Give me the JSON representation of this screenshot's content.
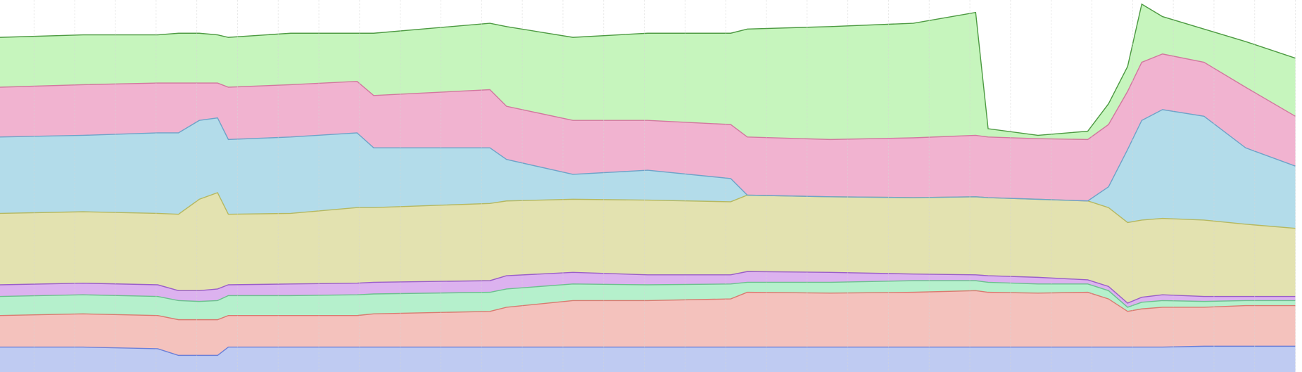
{
  "chart_data": {
    "type": "stacked-area",
    "x": [
      0,
      100,
      190,
      215,
      240,
      262,
      275,
      350,
      430,
      450,
      590,
      610,
      690,
      780,
      880,
      900,
      1000,
      1100,
      1175,
      1190,
      1250,
      1310,
      1335,
      1358,
      1375,
      1400,
      1450,
      1500,
      1560
    ],
    "xlim": [
      0,
      1568
    ],
    "ylim": [
      0,
      448
    ],
    "xticks": [
      41,
      90,
      139,
      188,
      237,
      286,
      335,
      384,
      433,
      482,
      531,
      580,
      629,
      678,
      727,
      776,
      825,
      874,
      923,
      972,
      1021,
      1070,
      1119,
      1168,
      1217,
      1266,
      1315,
      1364,
      1413,
      1462,
      1511,
      1560
    ],
    "grid": true,
    "series": [
      {
        "color": "#bfcbf2",
        "line_color": "#6a7fd8",
        "values": [
          30,
          30,
          28,
          20,
          20,
          20,
          30,
          30,
          30,
          30,
          30,
          30,
          30,
          30,
          30,
          30,
          30,
          30,
          30,
          30,
          30,
          30,
          30,
          30,
          30,
          30,
          31,
          31,
          31
        ]
      },
      {
        "color": "#f4c2bd",
        "line_color": "#d97a70",
        "values": [
          38,
          40,
          40,
          43,
          43,
          43,
          38,
          38,
          38,
          40,
          43,
          48,
          56,
          56,
          58,
          66,
          65,
          66,
          68,
          66,
          65,
          66,
          58,
          43,
          46,
          48,
          47,
          49,
          49
        ]
      },
      {
        "color": "#b5f0cc",
        "line_color": "#6cc08e",
        "values": [
          23,
          23,
          23,
          23,
          22,
          23,
          24,
          24,
          25,
          24,
          23,
          22,
          20,
          19,
          18,
          12,
          13,
          14,
          12,
          12,
          11,
          10,
          10,
          5,
          8,
          8,
          7,
          6,
          6
        ]
      },
      {
        "color": "#dcb2ef",
        "line_color": "#9a5ec8",
        "values": [
          14,
          14,
          14,
          12,
          13,
          14,
          13,
          14,
          14,
          14,
          14,
          16,
          14,
          12,
          11,
          13,
          12,
          8,
          7,
          8,
          8,
          5,
          5,
          5,
          6,
          7,
          6,
          5,
          5
        ]
      },
      {
        "color": "#e3e2b0",
        "line_color": "#b5b860",
        "values": [
          86,
          86,
          86,
          92,
          110,
          116,
          85,
          85,
          91,
          90,
          93,
          90,
          88,
          90,
          88,
          92,
          91,
          92,
          94,
          94,
          94,
          95,
          95,
          97,
          93,
          92,
          92,
          87,
          82
        ]
      },
      {
        "color": "#b3dcea",
        "line_color": "#6ea3c8",
        "values": [
          92,
          92,
          97,
          98,
          95,
          90,
          90,
          92,
          90,
          72,
          67,
          50,
          30,
          36,
          28,
          0,
          0,
          0,
          0,
          0,
          0,
          0,
          25,
          88,
          120,
          131,
          125,
          92,
          75
        ]
      },
      {
        "color": "#f1b3d0",
        "line_color": "#d2789f",
        "values": [
          60,
          61,
          60,
          60,
          45,
          42,
          63,
          63,
          62,
          63,
          70,
          64,
          65,
          60,
          65,
          70,
          69,
          72,
          74,
          73,
          73,
          74,
          75,
          70,
          70,
          67,
          65,
          73,
          60
        ]
      },
      {
        "color": "#c6f5bd",
        "line_color": "#4d9a42",
        "values": [
          60,
          60,
          58,
          60,
          60,
          58,
          60,
          62,
          58,
          75,
          80,
          96,
          100,
          105,
          110,
          130,
          136,
          138,
          148,
          10,
          4,
          10,
          25,
          30,
          70,
          45,
          40,
          55,
          70
        ]
      }
    ]
  }
}
